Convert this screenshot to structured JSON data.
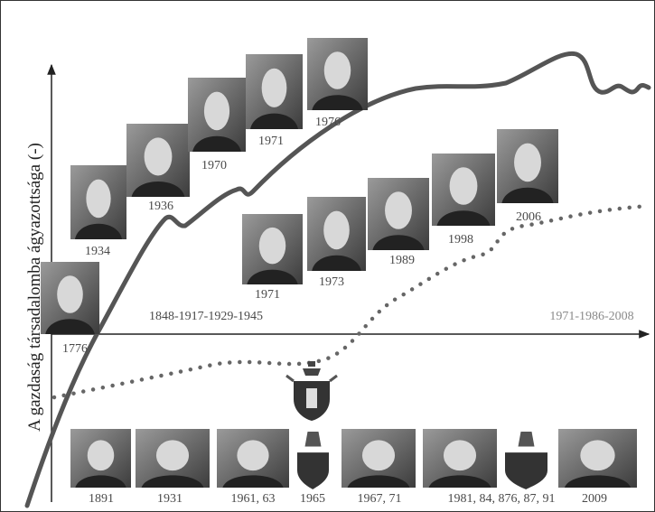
{
  "axis_label": "A gazdaság társadalomba ágyazottsága (-)",
  "period_labels": [
    "1848-1917-1929-1945",
    "1971-1986-2008"
  ],
  "economist_years": [
    "1776",
    "1934",
    "1936",
    "1970",
    "1971",
    "1976",
    "1971",
    "1973",
    "1989",
    "1998",
    "2006"
  ],
  "pope_years": [
    "1891",
    "1931",
    "1961, 63",
    "1965",
    "1967, 71",
    "1981, 84, 876, 87, 91",
    "2009"
  ]
}
